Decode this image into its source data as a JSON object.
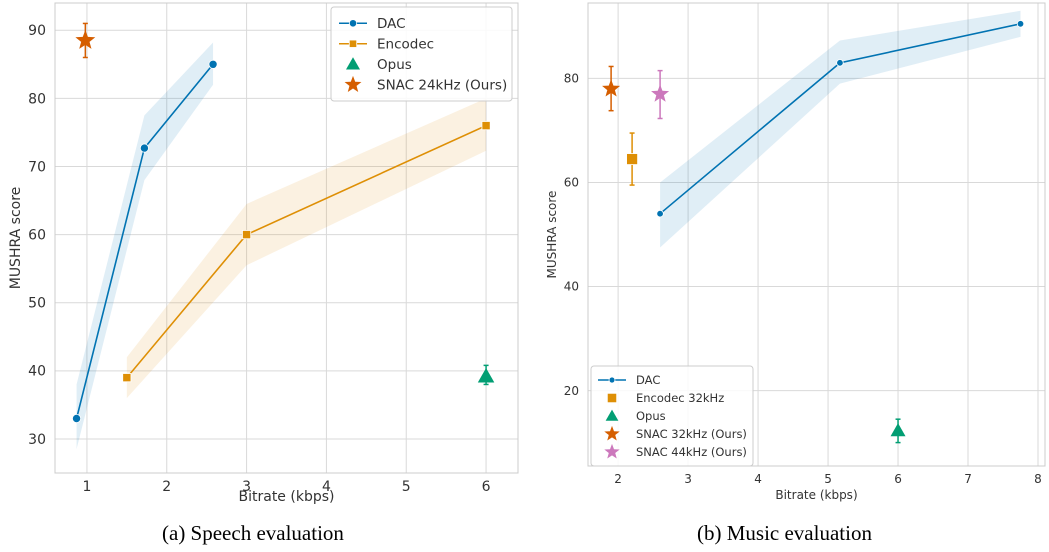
{
  "figure": {
    "captions": [
      "(a) Speech evaluation",
      "(b) Music evaluation"
    ],
    "colors": {
      "blue": "#0173b2",
      "orange": "#de8f05",
      "green": "#029e73",
      "dark_orange": "#d55e00",
      "pink": "#cc78bc",
      "grid": "#d9d9d9",
      "spine": "#cccccc"
    }
  },
  "chart_data": [
    {
      "type": "line",
      "xlabel": "Bitrate (kbps)",
      "ylabel": "MUSHRA score",
      "xlim": [
        0.6,
        6.4
      ],
      "ylim": [
        25,
        94
      ],
      "xticks": [
        1,
        2,
        3,
        4,
        5,
        6
      ],
      "yticks": [
        30,
        40,
        50,
        60,
        70,
        80,
        90
      ],
      "grid": true,
      "legend_position": "top-right",
      "series": [
        {
          "name": "DAC",
          "kind": "line",
          "color": "#0173b2",
          "marker": "circle",
          "x": [
            0.87,
            1.72,
            2.58
          ],
          "y": [
            33,
            72.7,
            85
          ],
          "ci_low": [
            28.5,
            68,
            82
          ],
          "ci_high": [
            38,
            77.5,
            88.2
          ]
        },
        {
          "name": "Encodec",
          "kind": "line",
          "color": "#de8f05",
          "marker": "square",
          "x": [
            1.5,
            3.0,
            6.0
          ],
          "y": [
            39,
            60,
            76
          ],
          "ci_low": [
            36,
            55.5,
            72.3
          ],
          "ci_high": [
            42,
            64.5,
            80
          ]
        },
        {
          "name": "Opus",
          "kind": "point",
          "color": "#029e73",
          "marker": "triangle",
          "x": [
            6.0
          ],
          "y": [
            39.2
          ],
          "err_low": [
            38
          ],
          "err_high": [
            40.8
          ]
        },
        {
          "name": "SNAC 24kHz (Ours)",
          "kind": "point",
          "color": "#d55e00",
          "marker": "star",
          "x": [
            0.98
          ],
          "y": [
            88.5
          ],
          "err_low": [
            86
          ],
          "err_high": [
            91
          ]
        }
      ]
    },
    {
      "type": "line",
      "xlabel": "Bitrate (kbps)",
      "ylabel": "MUSHRA score",
      "xlim": [
        1.57,
        8.1
      ],
      "ylim": [
        5.5,
        94.5
      ],
      "xticks": [
        2,
        3,
        4,
        5,
        6,
        7,
        8
      ],
      "yticks": [
        20,
        40,
        60,
        80
      ],
      "grid": true,
      "legend_position": "bottom-left",
      "series": [
        {
          "name": "DAC",
          "kind": "line",
          "color": "#0173b2",
          "marker": "circle",
          "x": [
            2.6,
            5.17,
            7.75
          ],
          "y": [
            54,
            83,
            90.5
          ],
          "ci_low": [
            47.5,
            79,
            88
          ],
          "ci_high": [
            60,
            87.3,
            93
          ]
        },
        {
          "name": "Encodec 32kHz",
          "kind": "point",
          "color": "#de8f05",
          "marker": "square",
          "x": [
            2.2
          ],
          "y": [
            64.5
          ],
          "err_low": [
            59.5
          ],
          "err_high": [
            69.5
          ]
        },
        {
          "name": "Opus",
          "kind": "point",
          "color": "#029e73",
          "marker": "triangle",
          "x": [
            6.0
          ],
          "y": [
            12.3
          ],
          "err_low": [
            10
          ],
          "err_high": [
            14.5
          ]
        },
        {
          "name": "SNAC 32kHz (Ours)",
          "kind": "point",
          "color": "#d55e00",
          "marker": "star",
          "x": [
            1.9
          ],
          "y": [
            78
          ],
          "err_low": [
            73.8
          ],
          "err_high": [
            82.3
          ]
        },
        {
          "name": "SNAC 44kHz (Ours)",
          "kind": "point",
          "color": "#cc78bc",
          "marker": "star",
          "x": [
            2.6
          ],
          "y": [
            77
          ],
          "err_low": [
            72.3
          ],
          "err_high": [
            81.5
          ]
        }
      ]
    }
  ]
}
